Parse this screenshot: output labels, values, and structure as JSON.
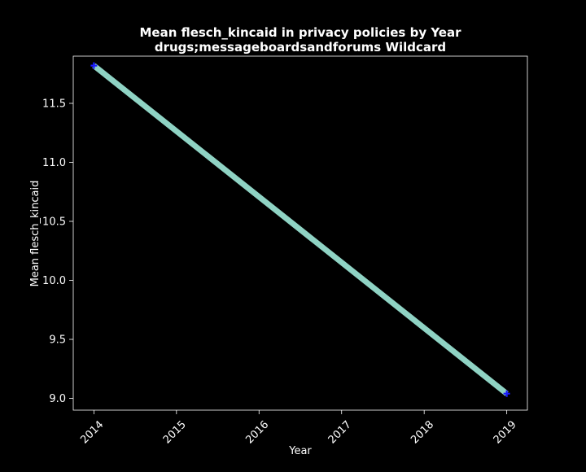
{
  "chart_data": {
    "type": "line",
    "title": "Mean flesch_kincaid in privacy policies by Year",
    "subtitle": "drugs;messageboardsandforums Wildcard",
    "xlabel": "Year",
    "ylabel": "Mean flesch_kincaid",
    "x": [
      2014,
      2019
    ],
    "x_ticks": [
      "2014",
      "2015",
      "2016",
      "2017",
      "2018",
      "2019"
    ],
    "y_ticks": [
      "9.0",
      "9.5",
      "10.0",
      "10.5",
      "11.0",
      "11.5"
    ],
    "xlim": [
      2013.75,
      2019.25
    ],
    "ylim": [
      8.9,
      11.9
    ],
    "grid": false,
    "series": [
      {
        "values": [
          11.82,
          9.04
        ],
        "color": "#8fd3c4",
        "marker_color": "#1a1aff"
      }
    ],
    "background": "#000000",
    "foreground": "#ffffff"
  }
}
